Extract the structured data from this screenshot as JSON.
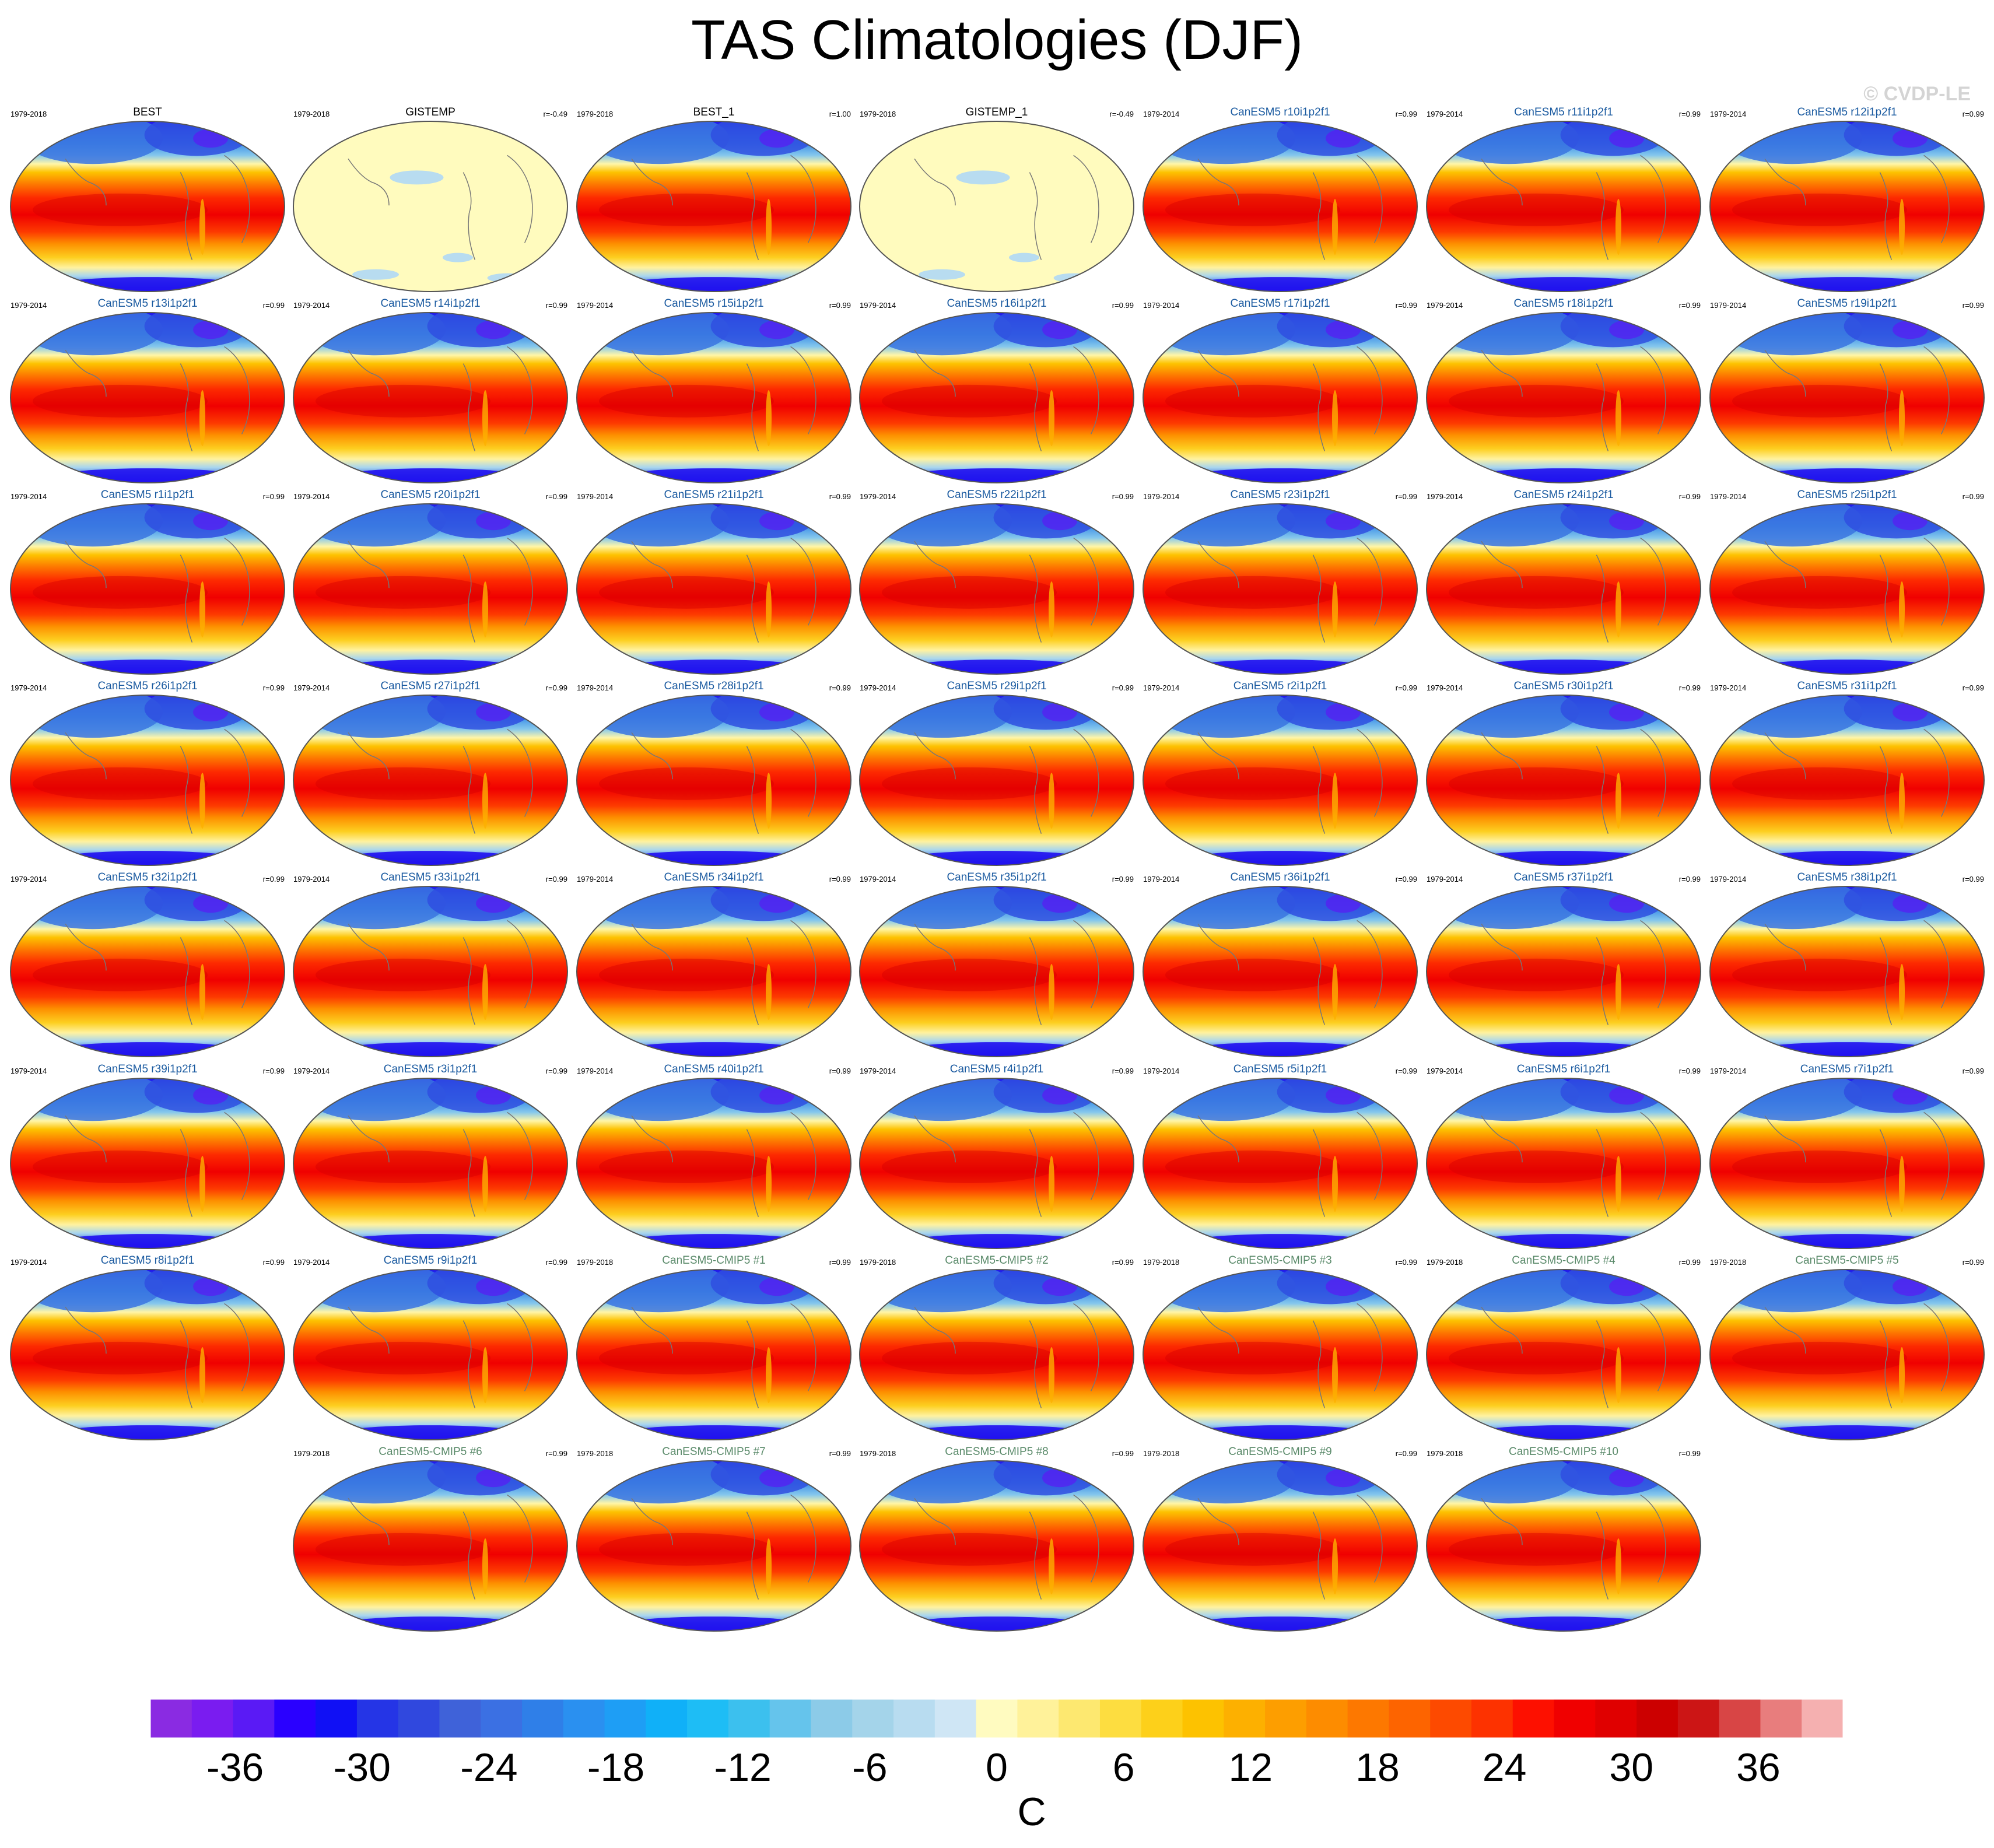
{
  "title": "TAS Climatologies (DJF)",
  "watermark": "© CVDP-LE",
  "colors": {
    "obs_title": "#000000",
    "member_title": "#1a5aa0",
    "cmip5_title": "#5a8a6a",
    "map_outline": "#555555",
    "coast": "#777777"
  },
  "chart_data": {
    "type": "heatmap",
    "description_kind": "panel grid of global DJF surface air temperature climatology maps",
    "units": "C",
    "colorbar": {
      "label": "C",
      "levels_min": -40,
      "levels_max": 40,
      "level_step": 2,
      "tick_labels": [
        "-36",
        "-30",
        "-24",
        "-18",
        "-12",
        "-6",
        "0",
        "6",
        "12",
        "18",
        "24",
        "30",
        "36"
      ],
      "colors": [
        "#8a2be2",
        "#7a1cf0",
        "#5a1af5",
        "#2a00ff",
        "#1010f5",
        "#2535e6",
        "#3048de",
        "#3f62d9",
        "#3b70e3",
        "#2f7fe8",
        "#2a90f0",
        "#1e9ef5",
        "#10b0f8",
        "#1ebdf5",
        "#3cc0ee",
        "#65c4ec",
        "#8ccbe8",
        "#a4d4ea",
        "#b8dcf0",
        "#cfe6f5",
        "#fffbc0",
        "#fff29a",
        "#fde870",
        "#fddd40",
        "#fdd01a",
        "#fdc200",
        "#fdb000",
        "#fd9e00",
        "#fd8c00",
        "#fd7800",
        "#fd6400",
        "#fd4a00",
        "#fd3200",
        "#fd1000",
        "#f00000",
        "#e00000",
        "#cc0000",
        "#cc1515",
        "#d84545",
        "#e87d7d",
        "#f5b0b0"
      ]
    },
    "panels": [
      {
        "name": "BEST",
        "period": "1979-2018",
        "r": "",
        "kind": "obs",
        "field": "full"
      },
      {
        "name": "GISTEMP",
        "period": "1979-2018",
        "r": "r=-0.49",
        "kind": "obs",
        "field": "empty"
      },
      {
        "name": "BEST_1",
        "period": "1979-2018",
        "r": "r=1.00",
        "kind": "obs",
        "field": "full"
      },
      {
        "name": "GISTEMP_1",
        "period": "1979-2018",
        "r": "r=-0.49",
        "kind": "obs",
        "field": "empty"
      },
      {
        "name": "CanESM5 r10i1p2f1",
        "period": "1979-2014",
        "r": "r=0.99",
        "kind": "member",
        "field": "full"
      },
      {
        "name": "CanESM5 r11i1p2f1",
        "period": "1979-2014",
        "r": "r=0.99",
        "kind": "member",
        "field": "full"
      },
      {
        "name": "CanESM5 r12i1p2f1",
        "period": "1979-2014",
        "r": "r=0.99",
        "kind": "member",
        "field": "full"
      },
      {
        "name": "CanESM5 r13i1p2f1",
        "period": "1979-2014",
        "r": "r=0.99",
        "kind": "member",
        "field": "full"
      },
      {
        "name": "CanESM5 r14i1p2f1",
        "period": "1979-2014",
        "r": "r=0.99",
        "kind": "member",
        "field": "full"
      },
      {
        "name": "CanESM5 r15i1p2f1",
        "period": "1979-2014",
        "r": "r=0.99",
        "kind": "member",
        "field": "full"
      },
      {
        "name": "CanESM5 r16i1p2f1",
        "period": "1979-2014",
        "r": "r=0.99",
        "kind": "member",
        "field": "full"
      },
      {
        "name": "CanESM5 r17i1p2f1",
        "period": "1979-2014",
        "r": "r=0.99",
        "kind": "member",
        "field": "full"
      },
      {
        "name": "CanESM5 r18i1p2f1",
        "period": "1979-2014",
        "r": "r=0.99",
        "kind": "member",
        "field": "full"
      },
      {
        "name": "CanESM5 r19i1p2f1",
        "period": "1979-2014",
        "r": "r=0.99",
        "kind": "member",
        "field": "full"
      },
      {
        "name": "CanESM5 r1i1p2f1",
        "period": "1979-2014",
        "r": "r=0.99",
        "kind": "member",
        "field": "full"
      },
      {
        "name": "CanESM5 r20i1p2f1",
        "period": "1979-2014",
        "r": "r=0.99",
        "kind": "member",
        "field": "full"
      },
      {
        "name": "CanESM5 r21i1p2f1",
        "period": "1979-2014",
        "r": "r=0.99",
        "kind": "member",
        "field": "full"
      },
      {
        "name": "CanESM5 r22i1p2f1",
        "period": "1979-2014",
        "r": "r=0.99",
        "kind": "member",
        "field": "full"
      },
      {
        "name": "CanESM5 r23i1p2f1",
        "period": "1979-2014",
        "r": "r=0.99",
        "kind": "member",
        "field": "full"
      },
      {
        "name": "CanESM5 r24i1p2f1",
        "period": "1979-2014",
        "r": "r=0.99",
        "kind": "member",
        "field": "full"
      },
      {
        "name": "CanESM5 r25i1p2f1",
        "period": "1979-2014",
        "r": "r=0.99",
        "kind": "member",
        "field": "full"
      },
      {
        "name": "CanESM5 r26i1p2f1",
        "period": "1979-2014",
        "r": "r=0.99",
        "kind": "member",
        "field": "full"
      },
      {
        "name": "CanESM5 r27i1p2f1",
        "period": "1979-2014",
        "r": "r=0.99",
        "kind": "member",
        "field": "full"
      },
      {
        "name": "CanESM5 r28i1p2f1",
        "period": "1979-2014",
        "r": "r=0.99",
        "kind": "member",
        "field": "full"
      },
      {
        "name": "CanESM5 r29i1p2f1",
        "period": "1979-2014",
        "r": "r=0.99",
        "kind": "member",
        "field": "full"
      },
      {
        "name": "CanESM5 r2i1p2f1",
        "period": "1979-2014",
        "r": "r=0.99",
        "kind": "member",
        "field": "full"
      },
      {
        "name": "CanESM5 r30i1p2f1",
        "period": "1979-2014",
        "r": "r=0.99",
        "kind": "member",
        "field": "full"
      },
      {
        "name": "CanESM5 r31i1p2f1",
        "period": "1979-2014",
        "r": "r=0.99",
        "kind": "member",
        "field": "full"
      },
      {
        "name": "CanESM5 r32i1p2f1",
        "period": "1979-2014",
        "r": "r=0.99",
        "kind": "member",
        "field": "full"
      },
      {
        "name": "CanESM5 r33i1p2f1",
        "period": "1979-2014",
        "r": "r=0.99",
        "kind": "member",
        "field": "full"
      },
      {
        "name": "CanESM5 r34i1p2f1",
        "period": "1979-2014",
        "r": "r=0.99",
        "kind": "member",
        "field": "full"
      },
      {
        "name": "CanESM5 r35i1p2f1",
        "period": "1979-2014",
        "r": "r=0.99",
        "kind": "member",
        "field": "full"
      },
      {
        "name": "CanESM5 r36i1p2f1",
        "period": "1979-2014",
        "r": "r=0.99",
        "kind": "member",
        "field": "full"
      },
      {
        "name": "CanESM5 r37i1p2f1",
        "period": "1979-2014",
        "r": "r=0.99",
        "kind": "member",
        "field": "full"
      },
      {
        "name": "CanESM5 r38i1p2f1",
        "period": "1979-2014",
        "r": "r=0.99",
        "kind": "member",
        "field": "full"
      },
      {
        "name": "CanESM5 r39i1p2f1",
        "period": "1979-2014",
        "r": "r=0.99",
        "kind": "member",
        "field": "full"
      },
      {
        "name": "CanESM5 r3i1p2f1",
        "period": "1979-2014",
        "r": "r=0.99",
        "kind": "member",
        "field": "full"
      },
      {
        "name": "CanESM5 r40i1p2f1",
        "period": "1979-2014",
        "r": "r=0.99",
        "kind": "member",
        "field": "full"
      },
      {
        "name": "CanESM5 r4i1p2f1",
        "period": "1979-2014",
        "r": "r=0.99",
        "kind": "member",
        "field": "full"
      },
      {
        "name": "CanESM5 r5i1p2f1",
        "period": "1979-2014",
        "r": "r=0.99",
        "kind": "member",
        "field": "full"
      },
      {
        "name": "CanESM5 r6i1p2f1",
        "period": "1979-2014",
        "r": "r=0.99",
        "kind": "member",
        "field": "full"
      },
      {
        "name": "CanESM5 r7i1p2f1",
        "period": "1979-2014",
        "r": "r=0.99",
        "kind": "member",
        "field": "full"
      },
      {
        "name": "CanESM5 r8i1p2f1",
        "period": "1979-2014",
        "r": "r=0.99",
        "kind": "member",
        "field": "full"
      },
      {
        "name": "CanESM5 r9i1p2f1",
        "period": "1979-2014",
        "r": "r=0.99",
        "kind": "member",
        "field": "full"
      },
      {
        "name": "CanESM5-CMIP5 #1",
        "period": "1979-2018",
        "r": "r=0.99",
        "kind": "cmip5",
        "field": "full"
      },
      {
        "name": "CanESM5-CMIP5 #2",
        "period": "1979-2018",
        "r": "r=0.99",
        "kind": "cmip5",
        "field": "full"
      },
      {
        "name": "CanESM5-CMIP5 #3",
        "period": "1979-2018",
        "r": "r=0.99",
        "kind": "cmip5",
        "field": "full"
      },
      {
        "name": "CanESM5-CMIP5 #4",
        "period": "1979-2018",
        "r": "r=0.99",
        "kind": "cmip5",
        "field": "full"
      },
      {
        "name": "CanESM5-CMIP5 #5",
        "period": "1979-2018",
        "r": "r=0.99",
        "kind": "cmip5",
        "field": "full"
      },
      {
        "name": "CanESM5-CMIP5 #6",
        "period": "1979-2018",
        "r": "r=0.99",
        "kind": "cmip5",
        "field": "full"
      },
      {
        "name": "CanESM5-CMIP5 #7",
        "period": "1979-2018",
        "r": "r=0.99",
        "kind": "cmip5",
        "field": "full"
      },
      {
        "name": "CanESM5-CMIP5 #8",
        "period": "1979-2018",
        "r": "r=0.99",
        "kind": "cmip5",
        "field": "full"
      },
      {
        "name": "CanESM5-CMIP5 #9",
        "period": "1979-2018",
        "r": "r=0.99",
        "kind": "cmip5",
        "field": "full"
      },
      {
        "name": "CanESM5-CMIP5 #10",
        "period": "1979-2018",
        "r": "r=0.99",
        "kind": "cmip5",
        "field": "full"
      }
    ]
  }
}
